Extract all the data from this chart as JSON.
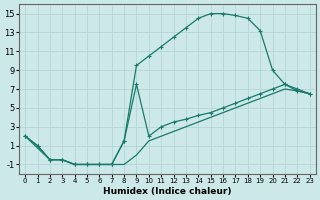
{
  "xlabel": "Humidex (Indice chaleur)",
  "background_color": "#cce8e8",
  "grid_color": "#b8d8d8",
  "line_color": "#1a7a6a",
  "xlim": [
    -0.5,
    23.5
  ],
  "ylim": [
    -2,
    16
  ],
  "xticks": [
    0,
    1,
    2,
    3,
    4,
    5,
    6,
    7,
    8,
    9,
    10,
    11,
    12,
    13,
    14,
    15,
    16,
    17,
    18,
    19,
    20,
    21,
    22,
    23
  ],
  "yticks": [
    -1,
    1,
    3,
    5,
    7,
    9,
    11,
    13,
    15
  ],
  "line1_x": [
    0,
    1,
    2,
    3,
    4,
    5,
    6,
    7,
    8,
    9,
    10,
    11,
    12,
    13,
    14,
    15,
    16,
    17,
    18,
    19,
    20,
    21,
    22,
    23
  ],
  "line1_y": [
    2,
    1,
    -0.5,
    -0.5,
    -1,
    -1,
    -1,
    -1,
    1.5,
    9.5,
    10.5,
    11.5,
    12.5,
    13.5,
    14.5,
    15.0,
    15.0,
    14.8,
    14.5,
    13.2,
    9.0,
    7.5,
    7.0,
    6.5
  ],
  "line2_x": [
    0,
    1,
    2,
    3,
    4,
    5,
    6,
    7,
    8,
    9,
    10,
    11,
    12,
    13,
    14,
    15,
    16,
    17,
    18,
    19,
    20,
    21,
    22,
    23
  ],
  "line2_y": [
    2,
    1,
    -0.5,
    -0.5,
    -1,
    -1,
    -1,
    -1,
    1.5,
    7.5,
    2.0,
    3.0,
    3.5,
    3.8,
    4.2,
    4.5,
    5.0,
    5.5,
    6.0,
    6.5,
    7.0,
    7.5,
    6.8,
    6.5
  ],
  "line3_x": [
    0,
    2,
    3,
    4,
    5,
    6,
    7,
    8,
    9,
    10,
    11,
    12,
    13,
    14,
    15,
    16,
    17,
    18,
    19,
    20,
    21,
    22,
    23
  ],
  "line3_y": [
    2,
    -0.5,
    -0.5,
    -1,
    -1,
    -1,
    -1,
    -1,
    0.0,
    1.5,
    2.0,
    2.5,
    3.0,
    3.5,
    4.0,
    4.5,
    5.0,
    5.5,
    6.0,
    6.5,
    7.0,
    6.8,
    6.5
  ]
}
